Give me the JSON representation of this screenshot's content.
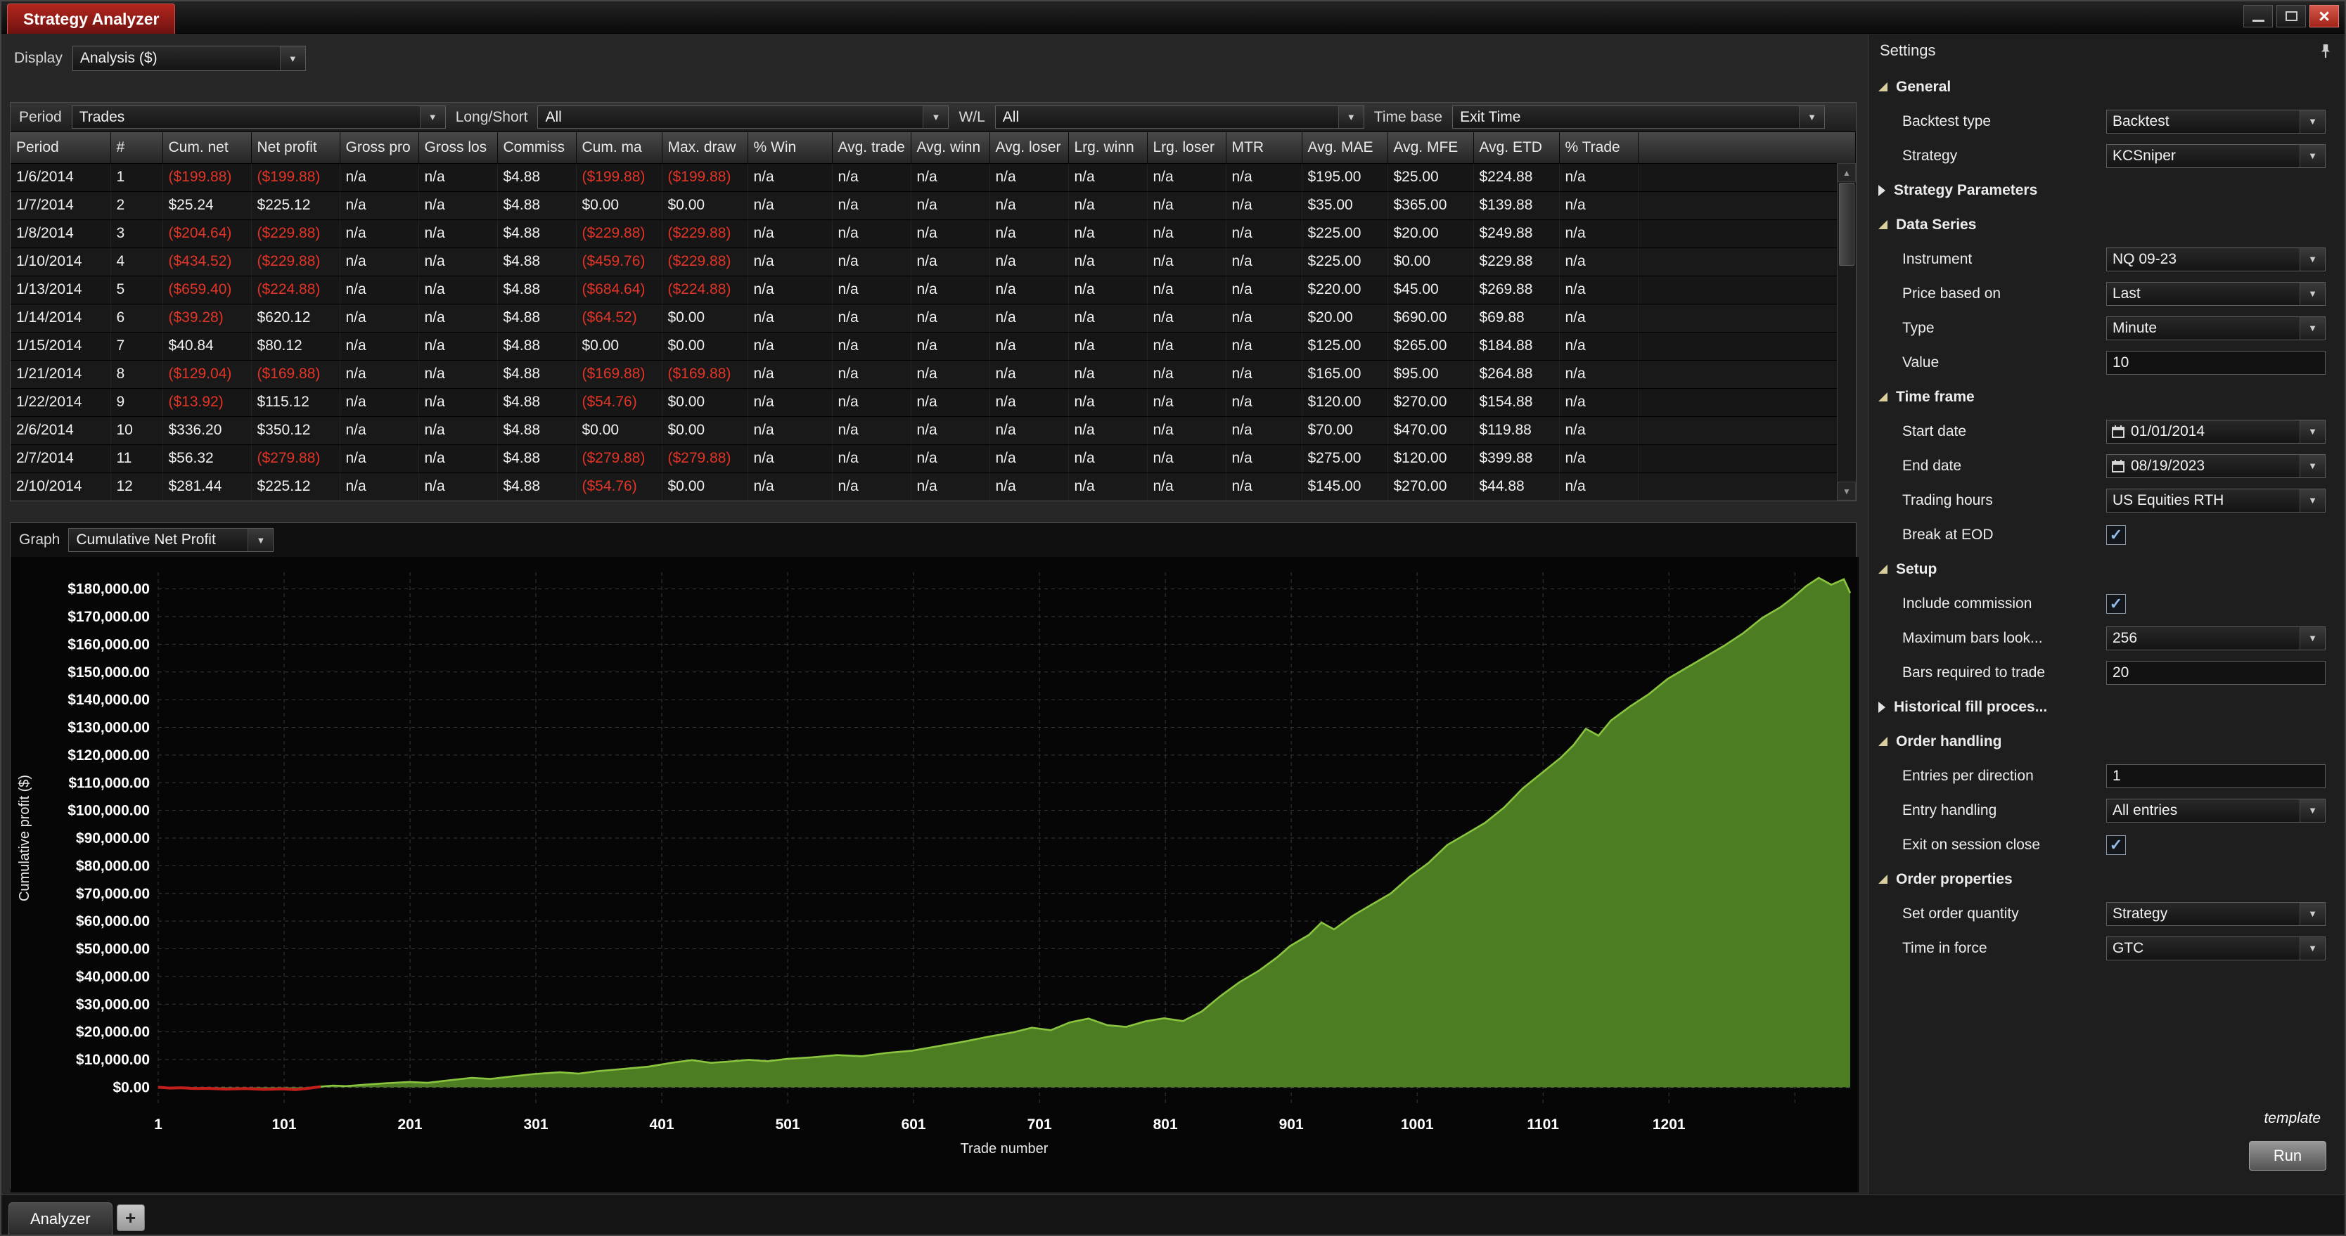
{
  "window": {
    "title": "Strategy Analyzer"
  },
  "icons": {
    "dropdown_arrow": "▼",
    "scroll_up": "▲",
    "scroll_down": "▼",
    "check": "✓",
    "close": "×",
    "add": "+"
  },
  "toolbar": {
    "display_label": "Display",
    "display_value": "Analysis ($)"
  },
  "filters": {
    "period_label": "Period",
    "period_value": "Trades",
    "longshort_label": "Long/Short",
    "longshort_value": "All",
    "wl_label": "W/L",
    "wl_value": "All",
    "timebase_label": "Time base",
    "timebase_value": "Exit Time"
  },
  "table": {
    "columns": [
      "Period",
      "#",
      "Cum. net",
      "Net profit",
      "Gross pro",
      "Gross los",
      "Commiss",
      "Cum. ma",
      "Max. draw",
      "% Win",
      "Avg. trade",
      "Avg. winn",
      "Avg. loser",
      "Lrg. winn",
      "Lrg. loser",
      "MTR",
      "Avg. MAE",
      "Avg. MFE",
      "Avg. ETD",
      "% Trade"
    ],
    "rows": [
      [
        "1/6/2014",
        "1",
        "($199.88)",
        "($199.88)",
        "n/a",
        "n/a",
        "$4.88",
        "($199.88)",
        "($199.88)",
        "n/a",
        "n/a",
        "n/a",
        "n/a",
        "n/a",
        "n/a",
        "n/a",
        "$195.00",
        "$25.00",
        "$224.88",
        "n/a"
      ],
      [
        "1/7/2014",
        "2",
        "$25.24",
        "$225.12",
        "n/a",
        "n/a",
        "$4.88",
        "$0.00",
        "$0.00",
        "n/a",
        "n/a",
        "n/a",
        "n/a",
        "n/a",
        "n/a",
        "n/a",
        "$35.00",
        "$365.00",
        "$139.88",
        "n/a"
      ],
      [
        "1/8/2014",
        "3",
        "($204.64)",
        "($229.88)",
        "n/a",
        "n/a",
        "$4.88",
        "($229.88)",
        "($229.88)",
        "n/a",
        "n/a",
        "n/a",
        "n/a",
        "n/a",
        "n/a",
        "n/a",
        "$225.00",
        "$20.00",
        "$249.88",
        "n/a"
      ],
      [
        "1/10/2014",
        "4",
        "($434.52)",
        "($229.88)",
        "n/a",
        "n/a",
        "$4.88",
        "($459.76)",
        "($229.88)",
        "n/a",
        "n/a",
        "n/a",
        "n/a",
        "n/a",
        "n/a",
        "n/a",
        "$225.00",
        "$0.00",
        "$229.88",
        "n/a"
      ],
      [
        "1/13/2014",
        "5",
        "($659.40)",
        "($224.88)",
        "n/a",
        "n/a",
        "$4.88",
        "($684.64)",
        "($224.88)",
        "n/a",
        "n/a",
        "n/a",
        "n/a",
        "n/a",
        "n/a",
        "n/a",
        "$220.00",
        "$45.00",
        "$269.88",
        "n/a"
      ],
      [
        "1/14/2014",
        "6",
        "($39.28)",
        "$620.12",
        "n/a",
        "n/a",
        "$4.88",
        "($64.52)",
        "$0.00",
        "n/a",
        "n/a",
        "n/a",
        "n/a",
        "n/a",
        "n/a",
        "n/a",
        "$20.00",
        "$690.00",
        "$69.88",
        "n/a"
      ],
      [
        "1/15/2014",
        "7",
        "$40.84",
        "$80.12",
        "n/a",
        "n/a",
        "$4.88",
        "$0.00",
        "$0.00",
        "n/a",
        "n/a",
        "n/a",
        "n/a",
        "n/a",
        "n/a",
        "n/a",
        "$125.00",
        "$265.00",
        "$184.88",
        "n/a"
      ],
      [
        "1/21/2014",
        "8",
        "($129.04)",
        "($169.88)",
        "n/a",
        "n/a",
        "$4.88",
        "($169.88)",
        "($169.88)",
        "n/a",
        "n/a",
        "n/a",
        "n/a",
        "n/a",
        "n/a",
        "n/a",
        "$165.00",
        "$95.00",
        "$264.88",
        "n/a"
      ],
      [
        "1/22/2014",
        "9",
        "($13.92)",
        "$115.12",
        "n/a",
        "n/a",
        "$4.88",
        "($54.76)",
        "$0.00",
        "n/a",
        "n/a",
        "n/a",
        "n/a",
        "n/a",
        "n/a",
        "n/a",
        "$120.00",
        "$270.00",
        "$154.88",
        "n/a"
      ],
      [
        "2/6/2014",
        "10",
        "$336.20",
        "$350.12",
        "n/a",
        "n/a",
        "$4.88",
        "$0.00",
        "$0.00",
        "n/a",
        "n/a",
        "n/a",
        "n/a",
        "n/a",
        "n/a",
        "n/a",
        "$70.00",
        "$470.00",
        "$119.88",
        "n/a"
      ],
      [
        "2/7/2014",
        "11",
        "$56.32",
        "($279.88)",
        "n/a",
        "n/a",
        "$4.88",
        "($279.88)",
        "($279.88)",
        "n/a",
        "n/a",
        "n/a",
        "n/a",
        "n/a",
        "n/a",
        "n/a",
        "$275.00",
        "$120.00",
        "$399.88",
        "n/a"
      ],
      [
        "2/10/2014",
        "12",
        "$281.44",
        "$225.12",
        "n/a",
        "n/a",
        "$4.88",
        "($54.76)",
        "$0.00",
        "n/a",
        "n/a",
        "n/a",
        "n/a",
        "n/a",
        "n/a",
        "n/a",
        "$145.00",
        "$270.00",
        "$44.88",
        "n/a"
      ]
    ]
  },
  "graph": {
    "label": "Graph",
    "selected": "Cumulative Net Profit"
  },
  "chart_data": {
    "type": "area",
    "series_name": "Cumulative Net Profit",
    "xlabel": "Trade number",
    "ylabel": "Cumulative profit ($)",
    "xlim": [
      1,
      1345
    ],
    "ylim": [
      -6000,
      186000
    ],
    "x_ticks": [
      1,
      101,
      201,
      301,
      401,
      501,
      601,
      701,
      801,
      901,
      1001,
      1101,
      1201
    ],
    "y_tick_values": [
      0,
      10000,
      20000,
      30000,
      40000,
      50000,
      60000,
      70000,
      80000,
      90000,
      100000,
      110000,
      120000,
      130000,
      140000,
      150000,
      160000,
      170000,
      180000
    ],
    "y_tick_labels": [
      "$0.00",
      "$10,000.00",
      "$20,000.00",
      "$30,000.00",
      "$40,000.00",
      "$50,000.00",
      "$60,000.00",
      "$70,000.00",
      "$80,000.00",
      "$90,000.00",
      "$100,000.00",
      "$110,000.00",
      "$120,000.00",
      "$130,000.00",
      "$140,000.00",
      "$150,000.00",
      "$160,000.00",
      "$170,000.00",
      "$180,000.00"
    ],
    "x": [
      1,
      10,
      20,
      30,
      40,
      55,
      70,
      85,
      100,
      110,
      120,
      130,
      140,
      150,
      165,
      180,
      200,
      215,
      230,
      250,
      265,
      280,
      300,
      320,
      335,
      350,
      370,
      390,
      410,
      425,
      440,
      455,
      470,
      485,
      500,
      520,
      540,
      560,
      580,
      600,
      620,
      640,
      660,
      680,
      695,
      710,
      725,
      740,
      755,
      770,
      785,
      800,
      815,
      830,
      845,
      860,
      875,
      890,
      900,
      915,
      925,
      935,
      950,
      965,
      980,
      995,
      1010,
      1025,
      1040,
      1055,
      1070,
      1085,
      1100,
      1115,
      1125,
      1135,
      1145,
      1155,
      1170,
      1185,
      1200,
      1215,
      1230,
      1245,
      1260,
      1275,
      1290,
      1300,
      1310,
      1320,
      1330,
      1340,
      1345
    ],
    "y": [
      0,
      -300,
      -200,
      -500,
      -400,
      -700,
      -500,
      -800,
      -600,
      -900,
      -400,
      200,
      600,
      400,
      900,
      1400,
      1900,
      1600,
      2400,
      3400,
      3000,
      3800,
      4800,
      5400,
      4900,
      5800,
      6600,
      7400,
      8900,
      9800,
      8800,
      9300,
      9900,
      9400,
      10200,
      10800,
      11600,
      11200,
      12400,
      13200,
      14800,
      16400,
      18200,
      19800,
      21500,
      20600,
      23400,
      24800,
      22400,
      21800,
      23800,
      24900,
      23900,
      27400,
      33000,
      38000,
      42000,
      47000,
      51000,
      55000,
      59500,
      57000,
      62000,
      66000,
      70000,
      76000,
      81000,
      87500,
      91500,
      95500,
      101000,
      108000,
      113500,
      119000,
      123500,
      129500,
      127000,
      132500,
      137500,
      142000,
      147500,
      151500,
      155500,
      159500,
      164000,
      169500,
      173500,
      177000,
      181000,
      184000,
      181500,
      183500,
      178500
    ],
    "grid": true,
    "legend": "none",
    "line_color": "#8bc53f",
    "fill_color": "#4d7d22",
    "negative_line_color": "#c41f1a",
    "background": "#060606"
  },
  "settings": {
    "title": "Settings",
    "template_label": "template",
    "run_label": "Run",
    "sections": [
      {
        "type": "group",
        "label": "General",
        "expanded": true
      },
      {
        "type": "dropdown",
        "label": "Backtest type",
        "value": "Backtest"
      },
      {
        "type": "dropdown",
        "label": "Strategy",
        "value": "KCSniper"
      },
      {
        "type": "group",
        "label": "Strategy Parameters",
        "expanded": false
      },
      {
        "type": "group",
        "label": "Data Series",
        "expanded": true
      },
      {
        "type": "dropdown",
        "label": "Instrument",
        "value": "NQ 09-23"
      },
      {
        "type": "dropdown",
        "label": "Price based on",
        "value": "Last"
      },
      {
        "type": "dropdown",
        "label": "Type",
        "value": "Minute"
      },
      {
        "type": "input",
        "label": "Value",
        "value": "10"
      },
      {
        "type": "group",
        "label": "Time frame",
        "expanded": true
      },
      {
        "type": "date",
        "label": "Start date",
        "value": "01/01/2014"
      },
      {
        "type": "date",
        "label": "End date",
        "value": "08/19/2023"
      },
      {
        "type": "dropdown",
        "label": "Trading hours",
        "value": "US Equities RTH"
      },
      {
        "type": "checkbox",
        "label": "Break at EOD",
        "checked": true
      },
      {
        "type": "group",
        "label": "Setup",
        "expanded": true
      },
      {
        "type": "checkbox",
        "label": "Include commission",
        "checked": true
      },
      {
        "type": "dropdown",
        "label": "Maximum bars look...",
        "value": "256"
      },
      {
        "type": "input",
        "label": "Bars required to trade",
        "value": "20"
      },
      {
        "type": "group",
        "label": "Historical fill proces...",
        "expanded": false
      },
      {
        "type": "group",
        "label": "Order handling",
        "expanded": true
      },
      {
        "type": "input",
        "label": "Entries per direction",
        "value": "1"
      },
      {
        "type": "dropdown",
        "label": "Entry handling",
        "value": "All entries"
      },
      {
        "type": "checkbox",
        "label": "Exit on session close",
        "checked": true
      },
      {
        "type": "group",
        "label": "Order properties",
        "expanded": true
      },
      {
        "type": "dropdown",
        "label": "Set order quantity",
        "value": "Strategy"
      },
      {
        "type": "dropdown",
        "label": "Time in force",
        "value": "GTC"
      }
    ]
  },
  "tabs": {
    "analyzer": "Analyzer",
    "add": "+"
  }
}
